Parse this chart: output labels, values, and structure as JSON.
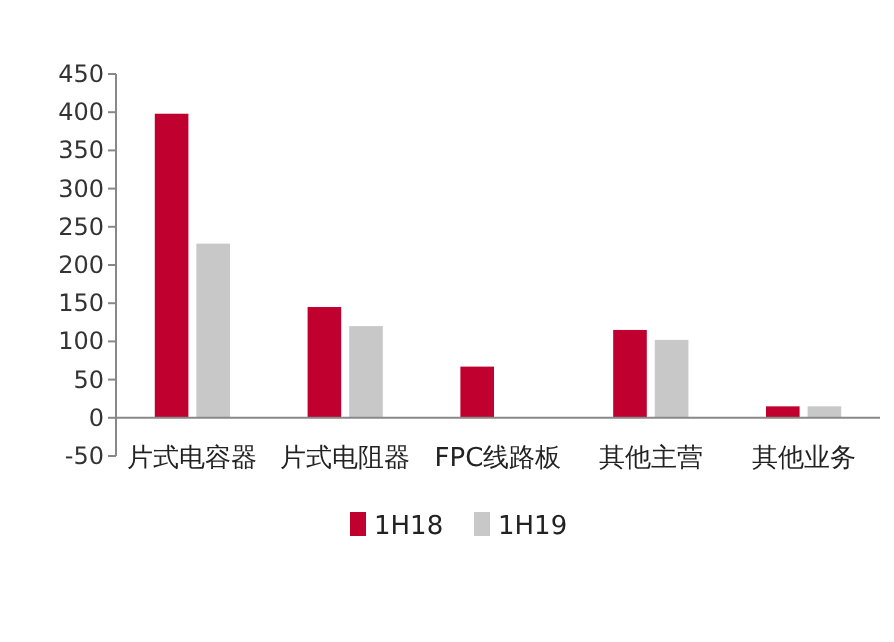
{
  "chart_data": {
    "type": "bar",
    "categories": [
      "片式电容器",
      "片式电阻器",
      "FPC线路板",
      "其他主营",
      "其他业务"
    ],
    "series": [
      {
        "name": "1H18",
        "color": "#c0002f",
        "values": [
          398,
          145,
          67,
          115,
          15
        ]
      },
      {
        "name": "1H19",
        "color": "#c8c8c8",
        "values": [
          228,
          120,
          null,
          102,
          15
        ]
      }
    ],
    "ylim": [
      -50,
      450
    ],
    "yticks": [
      -50,
      0,
      50,
      100,
      150,
      200,
      250,
      300,
      350,
      400,
      450
    ],
    "legend": "bottom",
    "grid": false
  }
}
